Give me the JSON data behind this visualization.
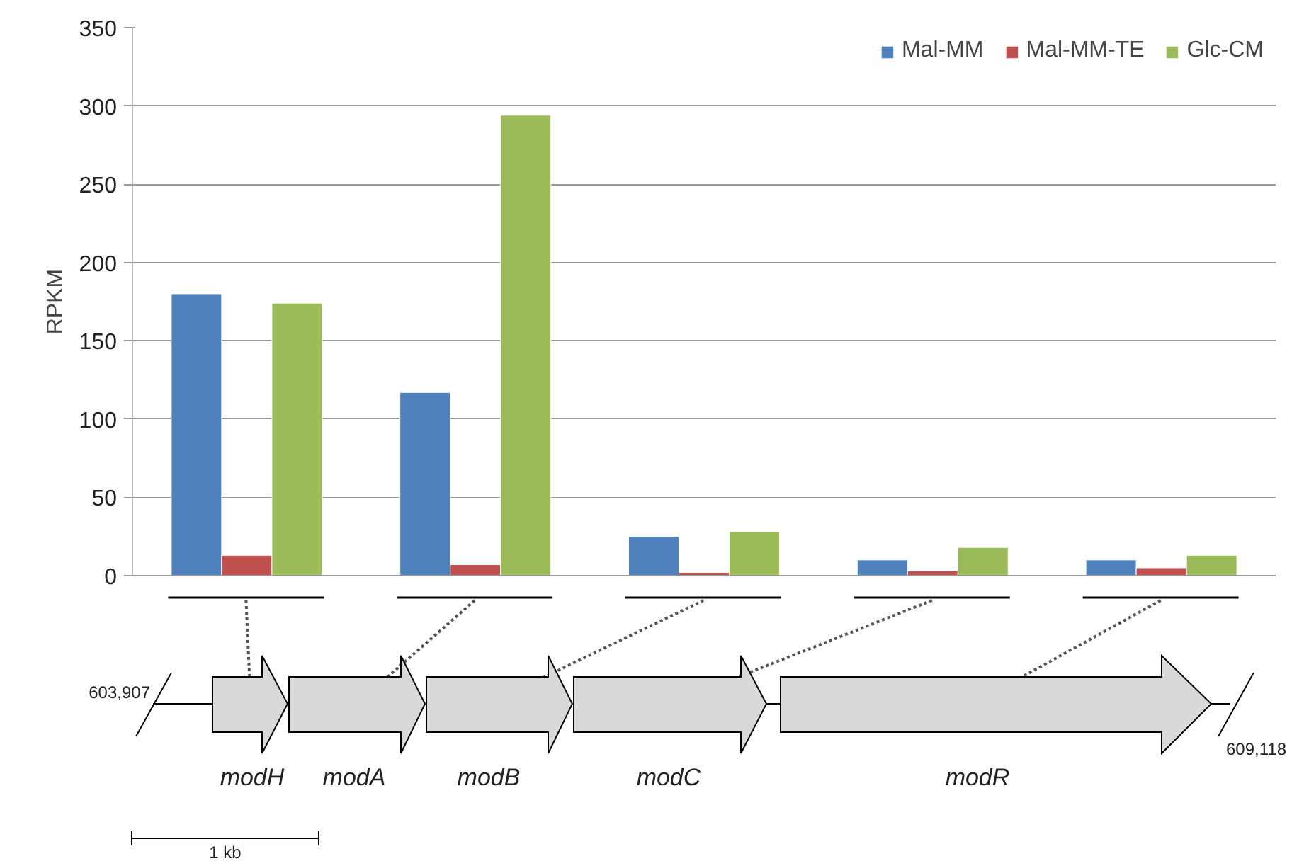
{
  "chart_data": {
    "type": "bar",
    "ylabel": "RPKM",
    "categories": [
      null,
      null,
      null,
      null,
      null
    ],
    "series": [
      {
        "name": "Mal-MM",
        "color": "#4f81bd",
        "values": [
          180,
          117,
          25,
          10,
          10
        ]
      },
      {
        "name": "Mal-MM-TE",
        "color": "#c0504d",
        "values": [
          13,
          7,
          2,
          3,
          5
        ]
      },
      {
        "name": "Glc-CM",
        "color": "#9bbb59",
        "values": [
          174,
          294,
          28,
          18,
          13
        ]
      }
    ],
    "ylim": [
      0,
      350
    ],
    "yticks": [
      0,
      50,
      100,
      150,
      200,
      250,
      300,
      350
    ],
    "grid": "y",
    "legend": "top right",
    "annotations": [
      "modH",
      "modA",
      "modB",
      "modC",
      "modR",
      "603,907",
      "609,118",
      "1 kb"
    ]
  }
}
